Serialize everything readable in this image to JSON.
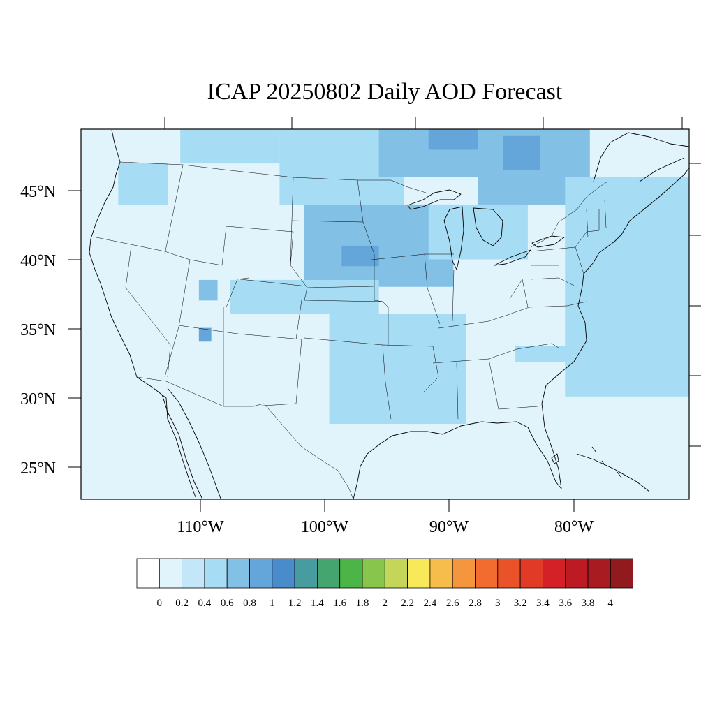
{
  "title": "ICAP 20250802 Daily AOD Forecast",
  "map": {
    "lat_labels": [
      "45°N",
      "40°N",
      "35°N",
      "30°N",
      "25°N"
    ],
    "lat_values": [
      45,
      40,
      35,
      30,
      25
    ],
    "lon_labels": [
      "110°W",
      "100°W",
      "90°W",
      "80°W"
    ],
    "lon_values": [
      -110,
      -100,
      -90,
      -80
    ],
    "lat_range": [
      22.5,
      49.5
    ],
    "lon_range": [
      -120,
      -71
    ]
  },
  "colorbar": {
    "labels": [
      "0",
      "0.2",
      "0.4",
      "0.6",
      "0.8",
      "1",
      "1.2",
      "1.4",
      "1.6",
      "1.8",
      "2",
      "2.2",
      "2.4",
      "2.6",
      "2.8",
      "3",
      "3.2",
      "3.4",
      "3.6",
      "3.8",
      "4"
    ],
    "colors": [
      "#ffffff",
      "#e1f3fb",
      "#c3e7f8",
      "#a6dcf4",
      "#82c0e6",
      "#64a6da",
      "#4a8ccb",
      "#479c9f",
      "#44a56e",
      "#4cb547",
      "#88c54c",
      "#c4d65a",
      "#f8e95a",
      "#f6bd4c",
      "#f4963e",
      "#f26c30",
      "#ea5229",
      "#e13a27",
      "#d42127",
      "#bd1b24",
      "#a81b21",
      "#901a1d"
    ]
  },
  "chart_data": {
    "type": "heatmap",
    "title": "ICAP 20250802 Daily AOD Forecast",
    "x_axis": {
      "labels": [
        "110°W",
        "100°W",
        "90°W",
        "80°W"
      ],
      "values": [
        -110,
        -100,
        -90,
        -80
      ]
    },
    "y_axis": {
      "labels": [
        "45°N",
        "40°N",
        "35°N",
        "30°N",
        "25°N"
      ],
      "values": [
        45,
        40,
        35,
        30,
        25
      ]
    },
    "levels": [
      0,
      0.2,
      0.4,
      0.6,
      0.8,
      1,
      1.2,
      1.4,
      1.6,
      1.8,
      2,
      2.2,
      2.4,
      2.6,
      2.8,
      3,
      3.2,
      3.4,
      3.6,
      3.8,
      4
    ],
    "background_level": 0.2,
    "regions": [
      {
        "lon": [
          -112,
          -104
        ],
        "lat": [
          47,
          49.5
        ],
        "level": 0.4
      },
      {
        "lon": [
          -104,
          -94
        ],
        "lat": [
          44,
          49.5
        ],
        "level": 0.4
      },
      {
        "lon": [
          -96,
          -88
        ],
        "lat": [
          46,
          49.5
        ],
        "level": 0.6
      },
      {
        "lon": [
          -88,
          -79
        ],
        "lat": [
          44,
          49.5
        ],
        "level": 0.6
      },
      {
        "lon": [
          -86,
          -83
        ],
        "lat": [
          46.5,
          49
        ],
        "level": 0.8
      },
      {
        "lon": [
          -92,
          -88
        ],
        "lat": [
          48,
          49.5
        ],
        "level": 0.8
      },
      {
        "lon": [
          -102,
          -90
        ],
        "lat": [
          38,
          44
        ],
        "level": 0.6
      },
      {
        "lon": [
          -99,
          -96
        ],
        "lat": [
          39.5,
          41
        ],
        "level": 0.8
      },
      {
        "lon": [
          -92,
          -84
        ],
        "lat": [
          40,
          44
        ],
        "level": 0.4
      },
      {
        "lon": [
          -108,
          -96
        ],
        "lat": [
          36,
          38.5
        ],
        "level": 0.4
      },
      {
        "lon": [
          -110.5,
          -109
        ],
        "lat": [
          37,
          38.5
        ],
        "level": 0.6
      },
      {
        "lon": [
          -110.5,
          -109.5
        ],
        "lat": [
          34,
          35
        ],
        "level": 0.8
      },
      {
        "lon": [
          -100,
          -89
        ],
        "lat": [
          28,
          36
        ],
        "level": 0.4
      },
      {
        "lon": [
          -85,
          -79
        ],
        "lat": [
          32.5,
          33.7
        ],
        "level": 0.4
      },
      {
        "lon": [
          -117,
          -113
        ],
        "lat": [
          44,
          47
        ],
        "level": 0.4
      },
      {
        "lon": [
          -81,
          -71
        ],
        "lat": [
          30,
          46
        ],
        "level": 0.4
      }
    ]
  }
}
